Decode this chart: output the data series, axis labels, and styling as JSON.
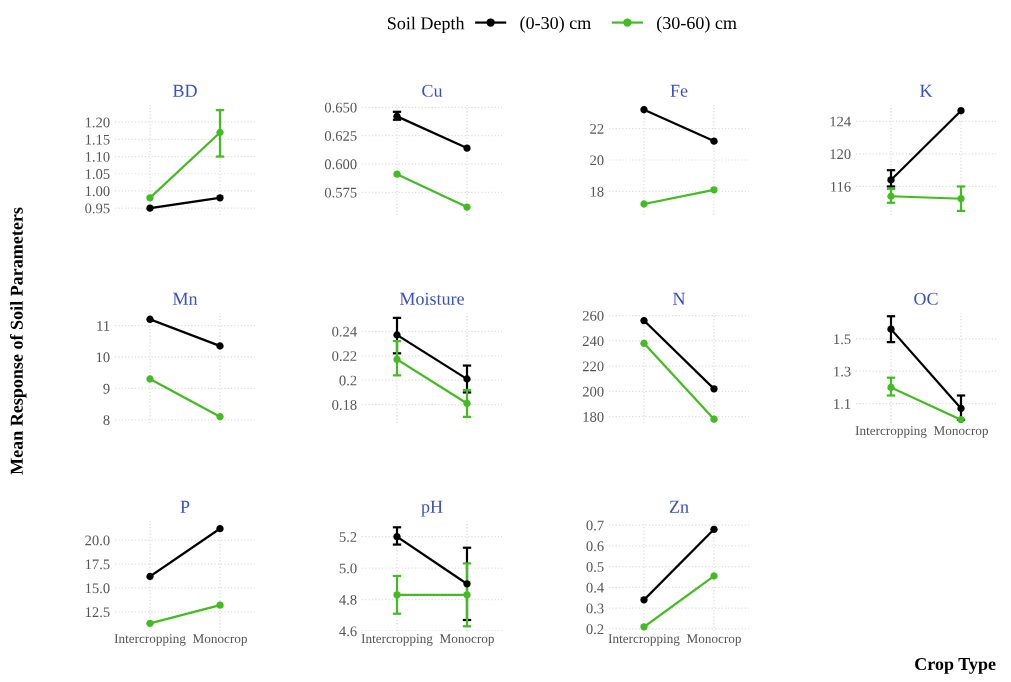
{
  "chart_data": [
    {
      "type": "line",
      "title": "BD",
      "ylabel": "Mean Response of Soil Parameters",
      "legend_title": "Soil Depth",
      "legend": "top",
      "grid": true,
      "marker": "circle",
      "tick_labels": "y",
      "categories": [
        null,
        null
      ],
      "ylim": [
        0.93,
        1.25
      ],
      "yticks": [
        {
          "value": 0.95,
          "label": "0.95"
        },
        {
          "value": 1.0,
          "label": "1.00"
        },
        {
          "value": 1.05,
          "label": "1.05"
        },
        {
          "value": 1.1,
          "label": "1.10"
        },
        {
          "value": 1.15,
          "label": "1.15"
        },
        {
          "value": 1.2,
          "label": "1.20"
        }
      ],
      "series": [
        {
          "name": "(0-30) cm",
          "color": "#000000",
          "values": [
            0.95,
            0.98
          ]
        },
        {
          "name": "(30-60) cm",
          "color": "#44bb22",
          "values": [
            0.98,
            1.17
          ],
          "errors": [
            null,
            [
              1.1,
              1.235
            ]
          ]
        }
      ]
    },
    {
      "type": "line",
      "title": "Cu",
      "grid": true,
      "marker": "circle",
      "tick_labels": "y",
      "categories": [
        null,
        null
      ],
      "ylim": [
        0.555,
        0.652
      ],
      "yticks": [
        {
          "value": 0.575,
          "label": "0.575"
        },
        {
          "value": 0.6,
          "label": "0.600"
        },
        {
          "value": 0.625,
          "label": "0.625"
        },
        {
          "value": 0.65,
          "label": "0.650"
        }
      ],
      "series": [
        {
          "color": "#000000",
          "values": [
            0.642,
            0.614
          ],
          "errors": [
            [
              0.639,
              0.646
            ],
            null
          ]
        },
        {
          "color": "#44bb22",
          "values": [
            0.591,
            0.562
          ]
        }
      ]
    },
    {
      "type": "line",
      "title": "Fe",
      "grid": true,
      "marker": "circle",
      "tick_labels": "y",
      "categories": [
        null,
        null
      ],
      "ylim": [
        16.5,
        23.5
      ],
      "yticks": [
        18,
        20,
        22
      ],
      "series": [
        {
          "color": "#000000",
          "values": [
            23.2,
            21.2
          ]
        },
        {
          "color": "#44bb22",
          "values": [
            17.2,
            18.1
          ]
        }
      ]
    },
    {
      "type": "line",
      "title": "K",
      "grid": true,
      "marker": "circle",
      "tick_labels": "y",
      "categories": [
        null,
        null
      ],
      "ylim": [
        112.5,
        126
      ],
      "yticks": [
        116,
        120,
        124
      ],
      "series": [
        {
          "color": "#000000",
          "values": [
            116.8,
            125.3
          ],
          "errors": [
            [
              116,
              118
            ],
            null
          ]
        },
        {
          "color": "#44bb22",
          "values": [
            114.8,
            114.5
          ],
          "errors": [
            [
              114,
              115.7
            ],
            [
              113,
              116
            ]
          ]
        }
      ]
    },
    {
      "type": "line",
      "title": "Mn",
      "grid": true,
      "marker": "circle",
      "tick_labels": "y",
      "categories": [
        null,
        null
      ],
      "ylim": [
        7.9,
        11.4
      ],
      "yticks": [
        8,
        9,
        10,
        11
      ],
      "series": [
        {
          "color": "#000000",
          "values": [
            11.2,
            10.35
          ]
        },
        {
          "color": "#44bb22",
          "values": [
            9.3,
            8.1
          ]
        }
      ]
    },
    {
      "type": "line",
      "title": "Moisture",
      "grid": true,
      "marker": "circle",
      "tick_labels": "y",
      "categories": [
        null,
        null
      ],
      "ylim": [
        0.165,
        0.255
      ],
      "yticks": [
        0.18,
        0.2,
        0.22,
        0.24
      ],
      "series": [
        {
          "color": "#000000",
          "values": [
            0.237,
            0.201
          ],
          "errors": [
            [
              0.222,
              0.251
            ],
            [
              0.19,
              0.212
            ]
          ]
        },
        {
          "color": "#44bb22",
          "values": [
            0.217,
            0.181
          ],
          "errors": [
            [
              0.204,
              0.232
            ],
            [
              0.17,
              0.192
            ]
          ]
        }
      ]
    },
    {
      "type": "line",
      "title": "N",
      "grid": true,
      "marker": "circle",
      "tick_labels": "y",
      "categories": [
        null,
        null
      ],
      "ylim": [
        175,
        262
      ],
      "yticks": [
        180,
        200,
        220,
        240,
        260
      ],
      "series": [
        {
          "color": "#000000",
          "values": [
            256,
            202
          ]
        },
        {
          "color": "#44bb22",
          "values": [
            238,
            178
          ]
        }
      ]
    },
    {
      "type": "line",
      "title": "OC",
      "xlabel": "Crop Type",
      "grid": true,
      "marker": "circle",
      "categories": [
        "Intercropping",
        "Monocrop"
      ],
      "ylim": [
        0.98,
        1.66
      ],
      "yticks": [
        1.1,
        1.3,
        1.5
      ],
      "series": [
        {
          "color": "#000000",
          "values": [
            1.56,
            1.07
          ],
          "errors": [
            [
              1.48,
              1.64
            ],
            [
              1.0,
              1.15
            ]
          ]
        },
        {
          "color": "#44bb22",
          "values": [
            1.2,
            1.0
          ],
          "errors": [
            [
              1.15,
              1.26
            ],
            null
          ]
        }
      ]
    },
    {
      "type": "line",
      "title": "P",
      "grid": true,
      "marker": "circle",
      "categories": [
        "Intercropping",
        "Monocrop"
      ],
      "ylim": [
        10.5,
        22
      ],
      "yticks": [
        {
          "value": 12.5,
          "label": "12.5"
        },
        {
          "value": 15,
          "label": "15.0"
        },
        {
          "value": 17.5,
          "label": "17.5"
        },
        {
          "value": 20,
          "label": "20.0"
        }
      ],
      "series": [
        {
          "color": "#000000",
          "values": [
            16.2,
            21.2
          ]
        },
        {
          "color": "#44bb22",
          "values": [
            11.3,
            13.2
          ]
        }
      ]
    },
    {
      "type": "line",
      "title": "pH",
      "grid": true,
      "marker": "circle",
      "categories": [
        "Intercropping",
        "Monocrop"
      ],
      "ylim": [
        4.6,
        5.3
      ],
      "yticks": [
        4.6,
        4.8,
        {
          "value": 5.0,
          "label": "5.0"
        },
        5.2
      ],
      "series": [
        {
          "color": "#000000",
          "values": [
            5.2,
            4.9
          ],
          "errors": [
            [
              5.15,
              5.26
            ],
            [
              4.67,
              5.13
            ]
          ]
        },
        {
          "color": "#44bb22",
          "values": [
            4.83,
            4.83
          ],
          "errors": [
            [
              4.71,
              4.95
            ],
            [
              4.63,
              5.03
            ]
          ]
        }
      ]
    },
    {
      "type": "line",
      "title": "Zn",
      "grid": true,
      "marker": "circle",
      "categories": [
        "Intercropping",
        "Monocrop"
      ],
      "ylim": [
        0.19,
        0.72
      ],
      "yticks": [
        0.2,
        0.3,
        0.4,
        0.5,
        0.6,
        0.7
      ],
      "series": [
        {
          "color": "#000000",
          "values": [
            0.34,
            0.68
          ]
        },
        {
          "color": "#44bb22",
          "values": [
            0.21,
            0.455
          ]
        }
      ]
    }
  ]
}
